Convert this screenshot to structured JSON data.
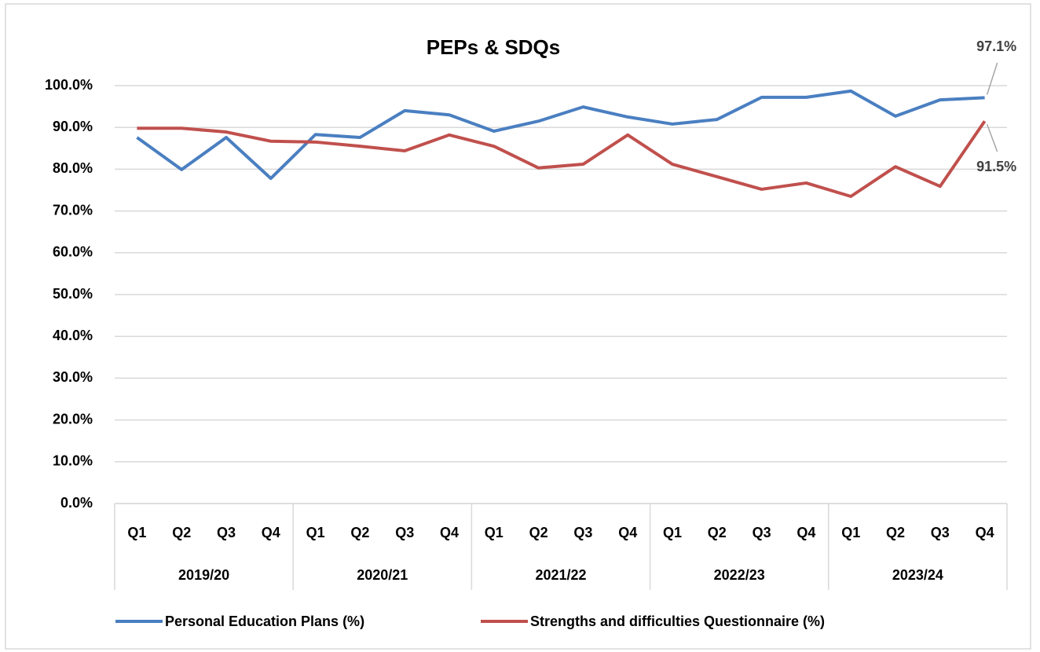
{
  "chart_data": {
    "type": "line",
    "title": "PEPs & SDQs",
    "categories": [
      "Q1",
      "Q2",
      "Q3",
      "Q4",
      "Q1",
      "Q2",
      "Q3",
      "Q4",
      "Q1",
      "Q2",
      "Q3",
      "Q4",
      "Q1",
      "Q2",
      "Q3",
      "Q4",
      "Q1",
      "Q2",
      "Q3",
      "Q4"
    ],
    "groups": [
      "2019/20",
      "2020/21",
      "2021/22",
      "2022/23",
      "2023/24"
    ],
    "series": [
      {
        "name": "Personal Education Plans (%)",
        "color": "#4a7fc1",
        "values": [
          87.6,
          79.9,
          87.6,
          77.8,
          88.3,
          87.6,
          94.0,
          93.0,
          89.1,
          91.5,
          94.9,
          92.5,
          90.8,
          91.9,
          97.2,
          97.2,
          98.7,
          92.7,
          96.6,
          97.1
        ],
        "value_labels": [
          null,
          null,
          null,
          null,
          null,
          null,
          null,
          null,
          null,
          null,
          null,
          null,
          null,
          null,
          null,
          null,
          null,
          null,
          null,
          "97.1%"
        ]
      },
      {
        "name": "Strengths and difficulties Questionnaire (%)",
        "color": "#c0504d",
        "values": [
          89.8,
          89.8,
          88.9,
          86.7,
          86.5,
          85.5,
          84.4,
          88.2,
          85.5,
          80.3,
          81.2,
          88.2,
          81.2,
          78.2,
          75.2,
          76.7,
          73.5,
          80.6,
          75.9,
          91.5
        ],
        "value_labels": [
          null,
          null,
          null,
          null,
          null,
          null,
          null,
          null,
          null,
          null,
          null,
          null,
          null,
          null,
          null,
          null,
          null,
          null,
          null,
          "91.5%"
        ]
      }
    ],
    "ylim": [
      0,
      100
    ],
    "yticks": [
      {
        "value": 0,
        "label": "0.0%"
      },
      {
        "value": 10,
        "label": "10.0%"
      },
      {
        "value": 20,
        "label": "20.0%"
      },
      {
        "value": 30,
        "label": "30.0%"
      },
      {
        "value": 40,
        "label": "40.0%"
      },
      {
        "value": 50,
        "label": "50.0%"
      },
      {
        "value": 60,
        "label": "60.0%"
      },
      {
        "value": 70,
        "label": "70.0%"
      },
      {
        "value": 80,
        "label": "80.0%"
      },
      {
        "value": 90,
        "label": "90.0%"
      },
      {
        "value": 100,
        "label": "100.0%"
      }
    ],
    "grid": true,
    "legend": "bottom"
  }
}
